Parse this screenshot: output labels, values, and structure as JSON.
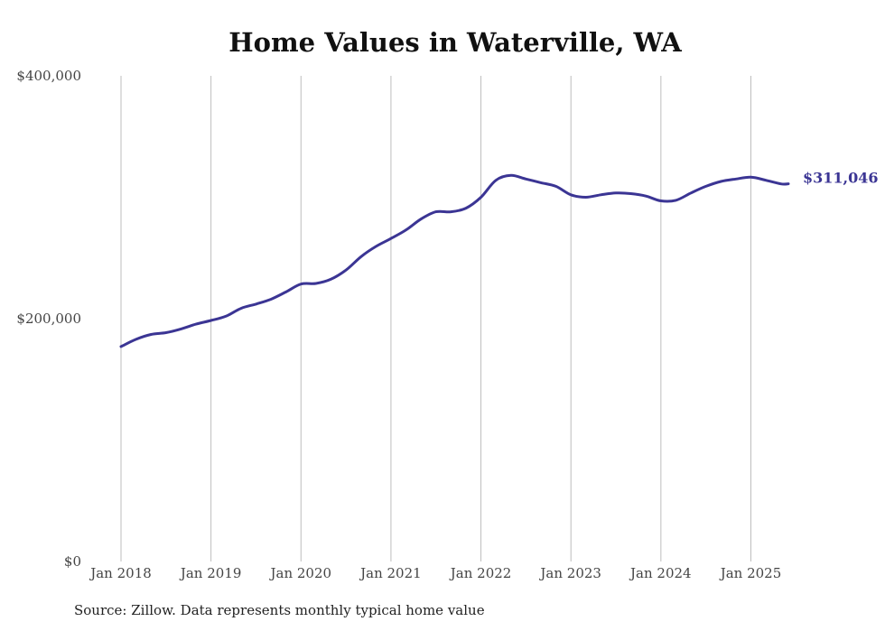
{
  "chart_data": {
    "type": "line",
    "title": "Home Values in Waterville, WA",
    "source": "Source: Zillow. Data represents monthly typical home value",
    "y_ticks": [
      {
        "value": 0,
        "label": "$0"
      },
      {
        "value": 200000,
        "label": "$200,000"
      },
      {
        "value": 400000,
        "label": "$400,000"
      }
    ],
    "x_ticks": [
      {
        "date": "2018-01",
        "label": "Jan 2018"
      },
      {
        "date": "2019-01",
        "label": "Jan 2019"
      },
      {
        "date": "2020-01",
        "label": "Jan 2020"
      },
      {
        "date": "2021-01",
        "label": "Jan 2021"
      },
      {
        "date": "2022-01",
        "label": "Jan 2022"
      },
      {
        "date": "2023-01",
        "label": "Jan 2023"
      },
      {
        "date": "2024-01",
        "label": "Jan 2024"
      },
      {
        "date": "2025-01",
        "label": "Jan 2025"
      }
    ],
    "ylim": [
      0,
      400000
    ],
    "xlim": [
      "2018-01",
      "2025-06"
    ],
    "grid": "vertical",
    "end_label": "$311,046",
    "line_color": "#3b3594",
    "series": [
      {
        "dates": [
          "2018-01",
          "2018-03",
          "2018-05",
          "2018-07",
          "2018-09",
          "2018-11",
          "2019-01",
          "2019-03",
          "2019-05",
          "2019-07",
          "2019-09",
          "2019-11",
          "2020-01",
          "2020-03",
          "2020-05",
          "2020-07",
          "2020-09",
          "2020-11",
          "2021-01",
          "2021-03",
          "2021-05",
          "2021-07",
          "2021-09",
          "2021-11",
          "2022-01",
          "2022-03",
          "2022-05",
          "2022-07",
          "2022-09",
          "2022-11",
          "2023-01",
          "2023-03",
          "2023-05",
          "2023-07",
          "2023-09",
          "2023-11",
          "2024-01",
          "2024-03",
          "2024-05",
          "2024-07",
          "2024-09",
          "2024-11",
          "2025-01",
          "2025-03",
          "2025-05",
          "2025-06"
        ],
        "values": [
          177000,
          183000,
          187000,
          188500,
          191500,
          195500,
          198500,
          202000,
          208500,
          212000,
          216000,
          222000,
          228500,
          229000,
          232500,
          240000,
          251000,
          259500,
          266000,
          273000,
          282000,
          288000,
          288000,
          291000,
          300000,
          314000,
          318000,
          315000,
          312000,
          309000,
          302000,
          300000,
          302000,
          303500,
          303000,
          301000,
          297000,
          297500,
          303500,
          309000,
          313000,
          315000,
          316500,
          314000,
          311000,
          311046
        ]
      }
    ]
  }
}
